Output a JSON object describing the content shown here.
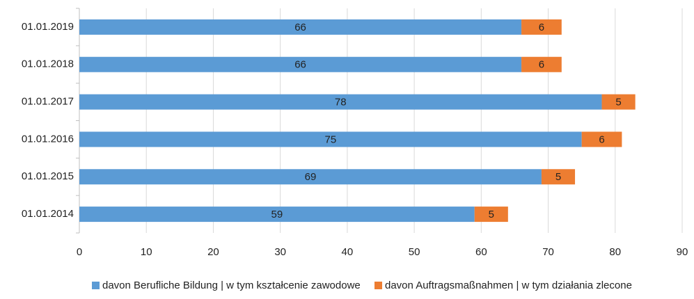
{
  "chart_data": {
    "type": "bar",
    "orientation": "horizontal",
    "stacked": true,
    "categories": [
      "01.01.2019",
      "01.01.2018",
      "01.01.2017",
      "01.01.2016",
      "01.01.2015",
      "01.01.2014"
    ],
    "series": [
      {
        "name": "davon Berufliche Bildung | w tym kształcenie zawodowe",
        "color": "#5b9bd5",
        "values": [
          66,
          66,
          78,
          75,
          69,
          59
        ]
      },
      {
        "name": "davon Auftragsmaßnahmen  | w tym działania zlecone",
        "color": "#ed7d31",
        "values": [
          6,
          6,
          5,
          6,
          5,
          5
        ]
      }
    ],
    "xlim": [
      0,
      90
    ],
    "xticks": [
      0,
      10,
      20,
      30,
      40,
      50,
      60,
      70,
      80,
      90
    ],
    "grid": true,
    "legend": "bottom"
  }
}
